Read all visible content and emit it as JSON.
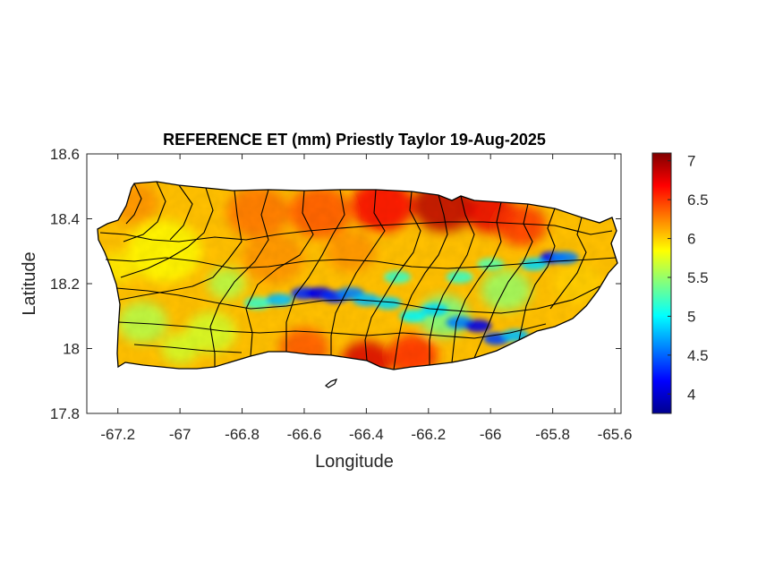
{
  "figure": {
    "title": "REFERENCE ET (mm) Priestly Taylor 19-Aug-2025",
    "xlabel": "Longitude",
    "ylabel": "Latitude"
  },
  "map_data": {
    "region": "Puerto Rico",
    "variable": "Reference ET (mm), Priestly Taylor",
    "date": "19-Aug-2025",
    "xlim": [
      -67.3,
      -65.58
    ],
    "ylim": [
      17.8,
      18.6
    ],
    "x_ticks": [
      -67.2,
      -67,
      -66.8,
      -66.6,
      -66.4,
      -66.2,
      -66,
      -65.8,
      -65.6
    ],
    "x_tick_labels": [
      "-67.2",
      "-67",
      "-66.8",
      "-66.6",
      "-66.4",
      "-66.2",
      "-66",
      "-65.8",
      "-65.6"
    ],
    "y_ticks": [
      17.8,
      18,
      18.2,
      18.4,
      18.6
    ],
    "y_tick_labels": [
      "17.8",
      "18",
      "18.2",
      "18.4",
      "18.6"
    ],
    "colormap": "jet",
    "color_range": [
      3.75,
      7.1
    ],
    "colorbar_ticks": [
      4,
      4.5,
      5,
      5.5,
      6,
      6.5,
      7
    ],
    "colorbar_tick_labels": [
      "4",
      "4.5",
      "5",
      "5.5",
      "6",
      "6.5",
      "7"
    ],
    "boundaries": "municipal boundaries drawn in black",
    "colors": {
      "min": "#00008f",
      "mid": "#80ff80",
      "max": "#800000",
      "outline": "#000000"
    },
    "features": [
      {
        "name": "central-cordillera-low-et",
        "lon": -66.55,
        "lat": 18.17,
        "value": 4.2
      },
      {
        "name": "cayey-low-et",
        "lon": -66.03,
        "lat": 18.07,
        "value": 4.0
      },
      {
        "name": "el-yunque-low-et",
        "lon": -65.8,
        "lat": 18.28,
        "value": 4.3
      },
      {
        "name": "north-central-high-et",
        "lon": -66.2,
        "lat": 18.42,
        "value": 6.9
      },
      {
        "name": "south-coast-high-et",
        "lon": -66.4,
        "lat": 17.96,
        "value": 6.8
      },
      {
        "name": "west-interior-moderate-et",
        "lon": -67.05,
        "lat": 18.3,
        "value": 5.8
      }
    ]
  }
}
